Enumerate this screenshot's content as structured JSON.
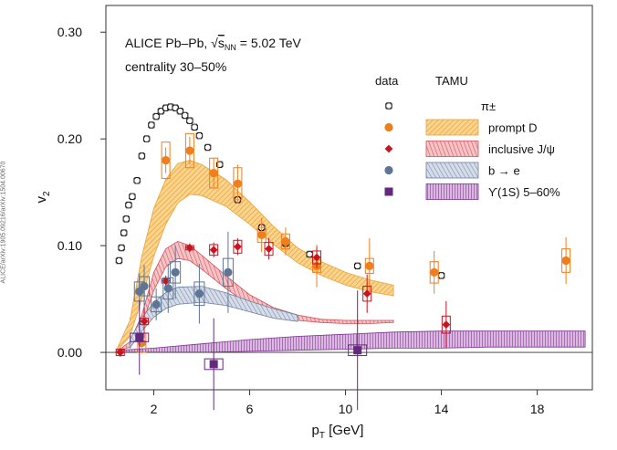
{
  "side_label": "ALICE/arXiv:1905.09216/arXiv:1504.00670",
  "chart_data": {
    "type": "scatter",
    "title_lines": [
      "ALICE Pb–Pb, √s_NN = 5.02 TeV",
      "centrality 30–50%"
    ],
    "xlabel": "p_T [GeV]",
    "ylabel": "v_2",
    "xlim": [
      0,
      20.3
    ],
    "ylim": [
      -0.035,
      0.325
    ],
    "xticks": [
      2,
      6,
      10,
      14,
      18
    ],
    "yticks": [
      0.0,
      0.1,
      0.2,
      0.3
    ],
    "ytick_labels": [
      "0.00",
      "0.10",
      "0.20",
      "0.30"
    ],
    "legend_headers": [
      "data",
      "TAMU"
    ],
    "legend": [
      "π±",
      "prompt D",
      "inclusive J/ψ",
      "b → e",
      "ϒ(1S) 5–60%"
    ],
    "colors": {
      "pion": "#222222",
      "promptD": "#f07e1b",
      "jpsi": "#c8141f",
      "be": "#5f7596",
      "upsilon": "#64287c"
    },
    "series": [
      {
        "name": "π±",
        "marker": "open-cross",
        "points": [
          [
            0.55,
            0.086
          ],
          [
            0.65,
            0.098
          ],
          [
            0.75,
            0.112
          ],
          [
            0.85,
            0.125
          ],
          [
            0.95,
            0.138
          ],
          [
            1.1,
            0.146
          ],
          [
            1.3,
            0.161
          ],
          [
            1.5,
            0.184
          ],
          [
            1.7,
            0.2
          ],
          [
            1.9,
            0.213
          ],
          [
            2.1,
            0.221
          ],
          [
            2.3,
            0.226
          ],
          [
            2.5,
            0.229
          ],
          [
            2.7,
            0.23
          ],
          [
            2.9,
            0.229
          ],
          [
            3.1,
            0.226
          ],
          [
            3.3,
            0.222
          ],
          [
            3.5,
            0.217
          ],
          [
            3.7,
            0.211
          ],
          [
            3.9,
            0.203
          ],
          [
            4.25,
            0.192
          ],
          [
            4.75,
            0.176
          ],
          [
            5.5,
            0.143
          ],
          [
            6.5,
            0.117
          ],
          [
            7.5,
            0.102
          ],
          [
            8.5,
            0.092
          ],
          [
            10.5,
            0.081
          ],
          [
            14.0,
            0.072
          ]
        ]
      },
      {
        "name": "prompt D",
        "marker": "circle",
        "points": [
          [
            1.5,
            0.009,
            0.01,
            0.009
          ],
          [
            2.5,
            0.18,
            0.012,
            0.017
          ],
          [
            3.5,
            0.189,
            0.013,
            0.016
          ],
          [
            4.5,
            0.168,
            0.014,
            0.014
          ],
          [
            5.5,
            0.158,
            0.018,
            0.015
          ],
          [
            6.5,
            0.11,
            0.016,
            0.007
          ],
          [
            7.5,
            0.104,
            0.013,
            0.007
          ],
          [
            8.8,
            0.081,
            0.02,
            0.006
          ],
          [
            11.0,
            0.081,
            0.026,
            0.007
          ],
          [
            13.7,
            0.075,
            0.02,
            0.01
          ],
          [
            19.2,
            0.086,
            0.022,
            0.011
          ]
        ]
      },
      {
        "name": "inclusive J/ψ",
        "marker": "diamond",
        "points": [
          [
            0.6,
            0.0,
            0.004,
            0.003
          ],
          [
            1.6,
            0.029,
            0.016,
            0.003
          ],
          [
            2.5,
            0.067,
            0.005,
            0.002
          ],
          [
            3.5,
            0.098,
            0.004,
            0.002
          ],
          [
            4.5,
            0.096,
            0.007,
            0.005
          ],
          [
            5.5,
            0.099,
            0.008,
            0.006
          ],
          [
            6.8,
            0.097,
            0.01,
            0.006
          ],
          [
            8.8,
            0.089,
            0.01,
            0.006
          ],
          [
            10.9,
            0.055,
            0.018,
            0.007
          ],
          [
            14.2,
            0.026,
            0.022,
            0.008
          ]
        ]
      },
      {
        "name": "b → e",
        "marker": "circle",
        "points": [
          [
            1.4,
            0.057,
            0.017,
            0.009
          ],
          [
            1.6,
            0.062,
            0.02,
            0.009
          ],
          [
            2.1,
            0.045,
            0.015,
            0.007
          ],
          [
            2.6,
            0.06,
            0.023,
            0.01
          ],
          [
            2.9,
            0.075,
            0.025,
            0.01
          ],
          [
            3.9,
            0.055,
            0.028,
            0.011
          ],
          [
            5.1,
            0.075,
            0.038,
            0.013
          ]
        ]
      },
      {
        "name": "ϒ(1S) 5–60%",
        "marker": "square",
        "points": [
          [
            1.4,
            0.014,
            0.035,
            0.004
          ],
          [
            4.5,
            -0.011,
            0.043,
            0.005
          ],
          [
            10.5,
            0.002,
            0.056,
            0.005
          ]
        ]
      }
    ],
    "bands": [
      {
        "name": "prompt D",
        "upper": [
          [
            0.4,
            0
          ],
          [
            1,
            0.03
          ],
          [
            1.5,
            0.09
          ],
          [
            2,
            0.135
          ],
          [
            2.5,
            0.162
          ],
          [
            3,
            0.177
          ],
          [
            3.5,
            0.18
          ],
          [
            4,
            0.176
          ],
          [
            5,
            0.162
          ],
          [
            6,
            0.141
          ],
          [
            7,
            0.118
          ],
          [
            8,
            0.098
          ],
          [
            9,
            0.085
          ],
          [
            10,
            0.075
          ],
          [
            11,
            0.068
          ],
          [
            12,
            0.063
          ]
        ],
        "lower": [
          [
            0.4,
            0
          ],
          [
            1,
            0.015
          ],
          [
            1.5,
            0.05
          ],
          [
            2,
            0.09
          ],
          [
            2.5,
            0.12
          ],
          [
            3,
            0.14
          ],
          [
            3.5,
            0.148
          ],
          [
            4,
            0.147
          ],
          [
            5,
            0.137
          ],
          [
            6,
            0.12
          ],
          [
            7,
            0.101
          ],
          [
            8,
            0.084
          ],
          [
            9,
            0.072
          ],
          [
            10,
            0.063
          ],
          [
            11,
            0.057
          ],
          [
            12,
            0.053
          ]
        ]
      },
      {
        "name": "inclusive J/ψ",
        "upper": [
          [
            0.4,
            0
          ],
          [
            1,
            0.01
          ],
          [
            1.5,
            0.035
          ],
          [
            2,
            0.075
          ],
          [
            2.5,
            0.097
          ],
          [
            3,
            0.104
          ],
          [
            3.5,
            0.1
          ],
          [
            4,
            0.091
          ],
          [
            5,
            0.072
          ],
          [
            6,
            0.054
          ],
          [
            7,
            0.042
          ],
          [
            8,
            0.035
          ],
          [
            9,
            0.031
          ],
          [
            10,
            0.03
          ],
          [
            11,
            0.03
          ],
          [
            12,
            0.03
          ]
        ],
        "lower": [
          [
            0.4,
            0
          ],
          [
            1,
            0.005
          ],
          [
            1.5,
            0.025
          ],
          [
            2,
            0.058
          ],
          [
            2.5,
            0.08
          ],
          [
            3,
            0.088
          ],
          [
            3.5,
            0.086
          ],
          [
            4,
            0.078
          ],
          [
            5,
            0.06
          ],
          [
            6,
            0.044
          ],
          [
            7,
            0.035
          ],
          [
            8,
            0.03
          ],
          [
            9,
            0.028
          ],
          [
            10,
            0.027
          ],
          [
            11,
            0.027
          ],
          [
            12,
            0.028
          ]
        ]
      },
      {
        "name": "b → e",
        "upper": [
          [
            1,
            0.012
          ],
          [
            1.5,
            0.032
          ],
          [
            2,
            0.047
          ],
          [
            2.5,
            0.056
          ],
          [
            3,
            0.061
          ],
          [
            4,
            0.062
          ],
          [
            5,
            0.056
          ],
          [
            6,
            0.048
          ],
          [
            7,
            0.041
          ],
          [
            8,
            0.035
          ]
        ],
        "lower": [
          [
            1,
            0.004
          ],
          [
            1.5,
            0.02
          ],
          [
            2,
            0.033
          ],
          [
            2.5,
            0.041
          ],
          [
            3,
            0.045
          ],
          [
            4,
            0.047
          ],
          [
            5,
            0.044
          ],
          [
            6,
            0.038
          ],
          [
            7,
            0.032
          ],
          [
            8,
            0.029
          ]
        ]
      },
      {
        "name": "ϒ(1S) 5–60%",
        "upper": [
          [
            0.6,
            0.002
          ],
          [
            2,
            0.004
          ],
          [
            4,
            0.008
          ],
          [
            6,
            0.012
          ],
          [
            8,
            0.015
          ],
          [
            10,
            0.017
          ],
          [
            12,
            0.019
          ],
          [
            14,
            0.02
          ],
          [
            16,
            0.02
          ],
          [
            18,
            0.02
          ],
          [
            20,
            0.02
          ]
        ],
        "lower": [
          [
            0.6,
            0.0
          ],
          [
            2,
            0.0
          ],
          [
            4,
            0.0
          ],
          [
            6,
            0.001
          ],
          [
            8,
            0.002
          ],
          [
            10,
            0.003
          ],
          [
            12,
            0.004
          ],
          [
            14,
            0.004
          ],
          [
            16,
            0.005
          ],
          [
            18,
            0.005
          ],
          [
            20,
            0.005
          ]
        ]
      }
    ]
  }
}
